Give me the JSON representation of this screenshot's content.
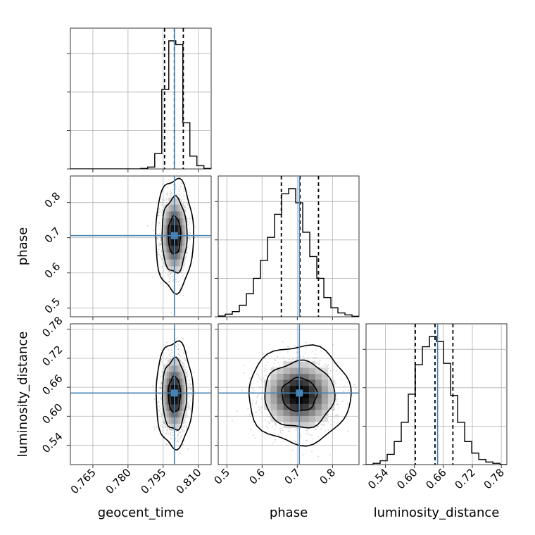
{
  "chart_data": {
    "type": "corner",
    "parameters": [
      "geocent_time",
      "phase",
      "luminosity_distance"
    ],
    "axis_labels": {
      "geocent_time": "geocent_time",
      "phase": "phase",
      "luminosity_distance": "luminosity_distance"
    },
    "ranges": {
      "geocent_time": [
        0.7554,
        0.8155
      ],
      "phase": [
        0.4755,
        0.8754
      ],
      "luminosity_distance": [
        0.4997,
        0.7915
      ]
    },
    "ticks": {
      "geocent_time": [
        "0.765",
        "0.780",
        "0.795",
        "0.810"
      ],
      "phase": [
        "0.5",
        "0.6",
        "0.7",
        "0.8"
      ],
      "luminosity_distance": [
        "0.54",
        "0.60",
        "0.66",
        "0.72",
        "0.78"
      ]
    },
    "truths": {
      "geocent_time": 0.7998,
      "phase": 0.706,
      "luminosity_distance": 0.648
    },
    "quantiles": {
      "geocent_time": [
        0.7956,
        0.7998,
        0.8036
      ],
      "phase": [
        0.6548,
        0.7078,
        0.7603
      ],
      "luminosity_distance": [
        0.6018,
        0.6426,
        0.6797
      ]
    },
    "histograms": {
      "geocent_time": {
        "edges": [
          0.7554,
          0.7584,
          0.7614,
          0.7644,
          0.7674,
          0.7704,
          0.7734,
          0.7764,
          0.7794,
          0.7824,
          0.7854,
          0.7884,
          0.7914,
          0.7944,
          0.7974,
          0.8004,
          0.8034,
          0.8064,
          0.8094,
          0.8124,
          0.8154
        ],
        "counts": [
          0,
          0,
          0,
          0,
          0,
          0,
          0,
          0,
          0,
          0,
          0.004,
          0.015,
          0.12,
          0.62,
          1.0,
          0.97,
          0.36,
          0.1,
          0.025,
          0.004
        ]
      },
      "phase": {
        "edges": [
          0.4755,
          0.4955,
          0.5155,
          0.5355,
          0.5555,
          0.5755,
          0.5955,
          0.6155,
          0.6355,
          0.6555,
          0.6755,
          0.6955,
          0.7155,
          0.7355,
          0.7555,
          0.7755,
          0.7955,
          0.8155,
          0.8355,
          0.8555,
          0.8755
        ],
        "counts": [
          0.006,
          0.02,
          0.04,
          0.09,
          0.18,
          0.3,
          0.44,
          0.62,
          0.8,
          0.96,
          1.0,
          0.89,
          0.66,
          0.47,
          0.3,
          0.15,
          0.07,
          0.03,
          0.015,
          0.004
        ]
      },
      "luminosity_distance": {
        "edges": [
          0.4997,
          0.5143,
          0.5289,
          0.5435,
          0.5581,
          0.5727,
          0.5873,
          0.6019,
          0.6165,
          0.6311,
          0.6457,
          0.6603,
          0.6749,
          0.6895,
          0.7041,
          0.7187,
          0.7333,
          0.7479,
          0.7625,
          0.7771,
          0.7917
        ],
        "counts": [
          0,
          0.01,
          0.03,
          0.08,
          0.18,
          0.33,
          0.55,
          0.78,
          0.92,
          1.0,
          0.96,
          0.79,
          0.54,
          0.33,
          0.18,
          0.09,
          0.04,
          0.02,
          0.01,
          0
        ]
      }
    },
    "contours_2d": [
      {
        "x": "geocent_time",
        "y": "phase",
        "center": [
          0.7998,
          0.707
        ],
        "sigma": [
          0.0027,
          0.0541
        ],
        "levels": [
          {
            "fraction": 0.39,
            "rx": 0.00268,
            "ry": 0.0536
          },
          {
            "fraction": 0.86,
            "rx": 0.00535,
            "ry": 0.1071
          },
          {
            "fraction": 0.99,
            "rx": 0.0081,
            "ry": 0.16
          }
        ]
      },
      {
        "x": "geocent_time",
        "y": "luminosity_distance",
        "center": [
          0.7998,
          0.645
        ],
        "sigma": [
          0.0027,
          0.0373
        ],
        "levels": [
          {
            "fraction": 0.39,
            "rx": 0.0026,
            "ry": 0.0369
          },
          {
            "fraction": 0.86,
            "rx": 0.0052,
            "ry": 0.0738
          },
          {
            "fraction": 0.99,
            "rx": 0.0079,
            "ry": 0.11
          }
        ]
      },
      {
        "x": "phase",
        "y": "luminosity_distance",
        "center": [
          0.7058,
          0.6446
        ],
        "sigma": [
          0.0503,
          0.0347
        ],
        "levels": [
          {
            "fraction": 0.39,
            "rx": 0.0498,
            "ry": 0.0344
          },
          {
            "fraction": 0.86,
            "rx": 0.0996,
            "ry": 0.0687
          },
          {
            "fraction": 0.99,
            "rx": 0.145,
            "ry": 0.102
          }
        ]
      }
    ],
    "grid": true,
    "truth_color": "#4682b4",
    "line_color": "#000000",
    "grid_color": "#b0b0b0",
    "scatter_color": "#999999"
  }
}
